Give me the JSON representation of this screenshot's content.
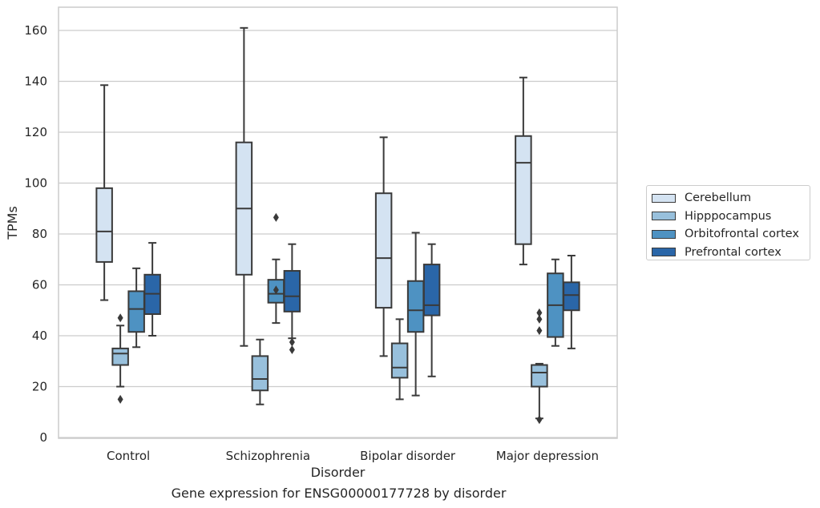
{
  "chart_data": {
    "type": "box",
    "title": "",
    "caption": "Gene expression for ENSG00000177728 by disorder",
    "xlabel": "Disorder",
    "ylabel": "TPMs",
    "ylim": [
      0,
      169
    ],
    "yticks": [
      0,
      20,
      40,
      60,
      80,
      100,
      120,
      140,
      160
    ],
    "grid": true,
    "legend_position": "right",
    "categories": [
      "Control",
      "Schizophrenia",
      "Bipolar disorder",
      "Major depression"
    ],
    "series": [
      {
        "name": "Cerebellum",
        "color": "#d4e3f2",
        "boxes": [
          {
            "whisker_low": 54,
            "q1": 69,
            "median": 81,
            "q3": 98,
            "whisker_high": 138.5,
            "outliers": []
          },
          {
            "whisker_low": 36,
            "q1": 64,
            "median": 90,
            "q3": 116,
            "whisker_high": 161,
            "outliers": []
          },
          {
            "whisker_low": 32,
            "q1": 51,
            "median": 70.5,
            "q3": 96,
            "whisker_high": 118,
            "outliers": []
          },
          {
            "whisker_low": 68,
            "q1": 76,
            "median": 108,
            "q3": 118.5,
            "whisker_high": 141.5,
            "outliers": []
          }
        ]
      },
      {
        "name": "Hipppocampus",
        "color": "#98c0dc",
        "boxes": [
          {
            "whisker_low": 20,
            "q1": 28.5,
            "median": 33,
            "q3": 35,
            "whisker_high": 44,
            "outliers": [
              47,
              15
            ]
          },
          {
            "whisker_low": 13,
            "q1": 18.5,
            "median": 23,
            "q3": 32,
            "whisker_high": 38.5,
            "outliers": []
          },
          {
            "whisker_low": 15,
            "q1": 23.5,
            "median": 27.5,
            "q3": 37,
            "whisker_high": 46.5,
            "outliers": []
          },
          {
            "whisker_low": 7.5,
            "q1": 20,
            "median": 25.5,
            "q3": 28.5,
            "whisker_high": 29,
            "outliers": [
              7,
              42,
              46.5,
              49
            ]
          }
        ]
      },
      {
        "name": "Orbitofrontal cortex",
        "color": "#4e92c2",
        "boxes": [
          {
            "whisker_low": 35.5,
            "q1": 41.5,
            "median": 50.5,
            "q3": 57.5,
            "whisker_high": 66.5,
            "outliers": []
          },
          {
            "whisker_low": 45,
            "q1": 53,
            "median": 56.5,
            "q3": 62,
            "whisker_high": 70,
            "outliers": [
              58,
              86.5
            ]
          },
          {
            "whisker_low": 16.5,
            "q1": 41.5,
            "median": 50,
            "q3": 61.5,
            "whisker_high": 80.5,
            "outliers": []
          },
          {
            "whisker_low": 36,
            "q1": 39.5,
            "median": 52,
            "q3": 64.5,
            "whisker_high": 70,
            "outliers": []
          }
        ]
      },
      {
        "name": "Prefrontal cortex",
        "color": "#2a66a8",
        "boxes": [
          {
            "whisker_low": 40,
            "q1": 48.5,
            "median": 56.5,
            "q3": 64,
            "whisker_high": 76.5,
            "outliers": []
          },
          {
            "whisker_low": 39,
            "q1": 49.5,
            "median": 55.5,
            "q3": 65.5,
            "whisker_high": 76,
            "outliers": [
              34.5,
              37.5
            ]
          },
          {
            "whisker_low": 24,
            "q1": 48,
            "median": 52,
            "q3": 68,
            "whisker_high": 76,
            "outliers": []
          },
          {
            "whisker_low": 35,
            "q1": 50,
            "median": 56,
            "q3": 61,
            "whisker_high": 71.5,
            "outliers": []
          }
        ]
      }
    ]
  }
}
